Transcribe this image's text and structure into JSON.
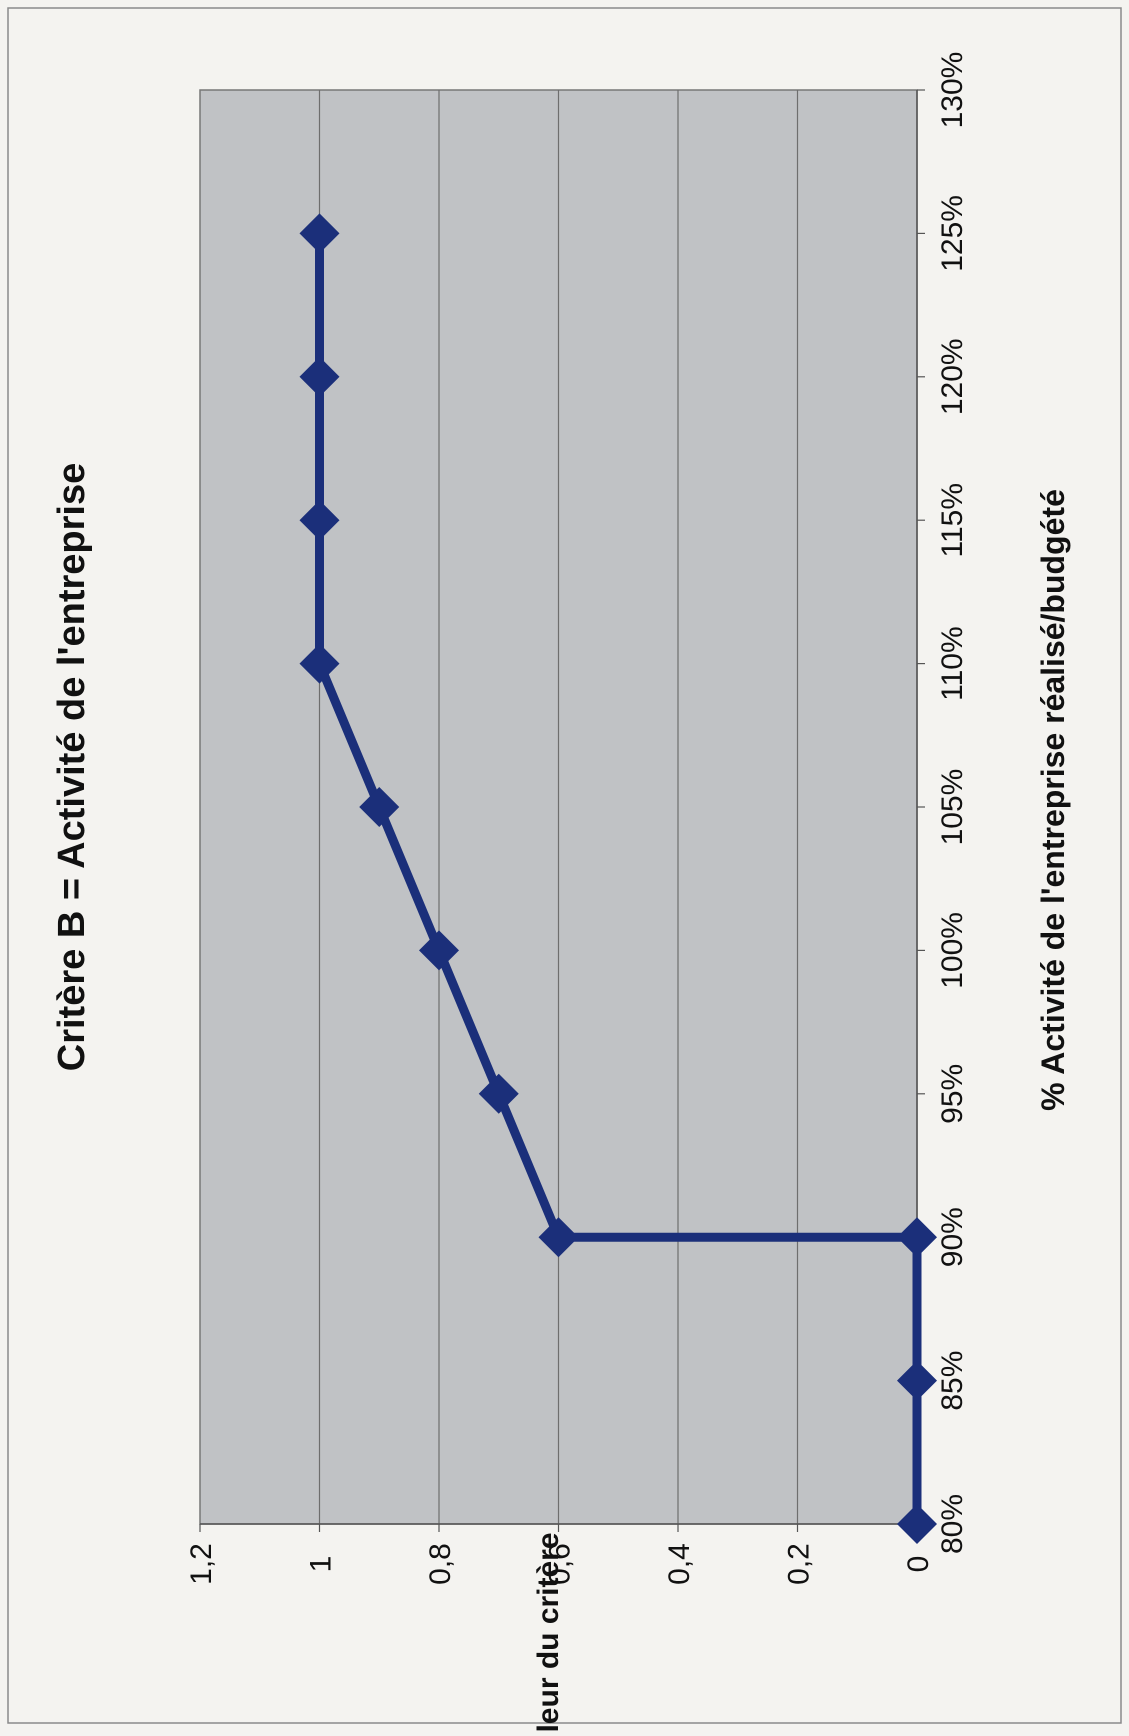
{
  "chart_data": {
    "type": "line",
    "title": "Critère B = Activité de l'entreprise",
    "xlabel": "% Activité de l'entreprise réalisé/budgété",
    "ylabel": "Valeur du critère",
    "xlim": [
      80,
      130
    ],
    "ylim": [
      0,
      1.2
    ],
    "x_ticks": [
      "80%",
      "85%",
      "90%",
      "95%",
      "100%",
      "105%",
      "110%",
      "115%",
      "120%",
      "125%",
      "130%"
    ],
    "y_ticks": [
      "0",
      "0,2",
      "0,4",
      "0,6",
      "0,8",
      "1",
      "1,2"
    ],
    "grid": true,
    "orientation": "rotated 90° counter-clockwise",
    "series": [
      {
        "color": "#1b2f7a",
        "marker": "diamond",
        "points": [
          {
            "x": 80,
            "y": 0
          },
          {
            "x": 85,
            "y": 0
          },
          {
            "x": 90,
            "y": 0
          },
          {
            "x": 90,
            "y": 0.6
          },
          {
            "x": 95,
            "y": 0.7
          },
          {
            "x": 100,
            "y": 0.8
          },
          {
            "x": 105,
            "y": 0.9
          },
          {
            "x": 110,
            "y": 1
          },
          {
            "x": 115,
            "y": 1
          },
          {
            "x": 120,
            "y": 1
          },
          {
            "x": 125,
            "y": 1
          }
        ]
      }
    ],
    "plot_background": "#c0c2c5",
    "grid_color": "#6e6e6e"
  }
}
